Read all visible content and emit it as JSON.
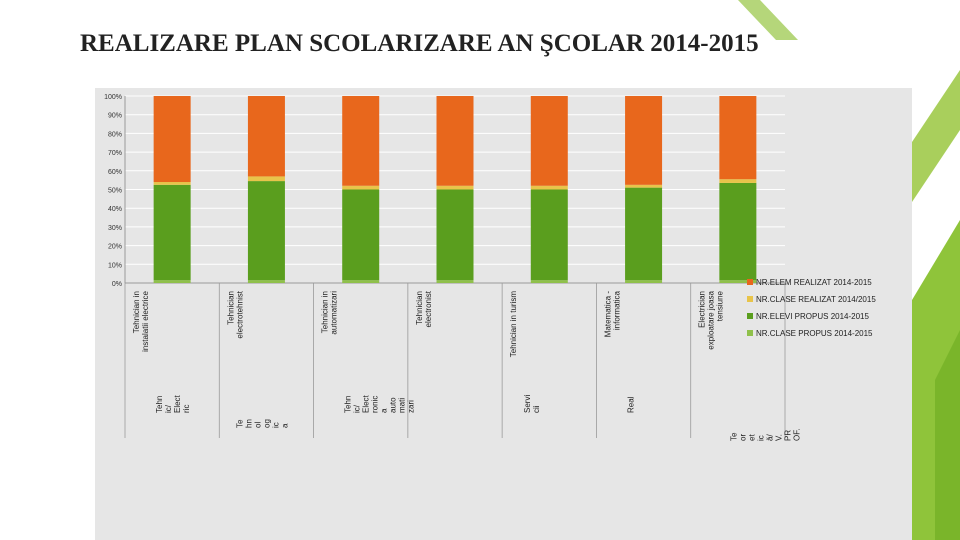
{
  "slide": {
    "title": "REALIZARE PLAN SCOLARIZARE AN ŞCOLAR 2014-2015"
  },
  "colors": {
    "nr_elem_realizat": "#e8671c",
    "nr_clase_realizat": "#e8c44a",
    "nr_elevi_propus": "#5a9e1e",
    "nr_clase_propus": "#8fc04a",
    "panel_background": "#e6e6e6",
    "accent_green": "#8fc43a"
  },
  "chart_data": {
    "type": "bar",
    "stacked": "percent",
    "title": "",
    "xlabel": "",
    "ylabel": "",
    "ylim": [
      0,
      100
    ],
    "y_ticks": [
      "0%",
      "10%",
      "20%",
      "30%",
      "40%",
      "50%",
      "60%",
      "70%",
      "80%",
      "90%",
      "100%"
    ],
    "grid": true,
    "legend_position": "right",
    "categories": [
      {
        "top": [
          "Tehnician in",
          "instalatii electrice"
        ],
        "bottom": [
          "Tehn",
          "ic/",
          "Elect",
          "ric"
        ]
      },
      {
        "top": [
          "Tehnician",
          "electrotehnist"
        ],
        "bottom": [
          "Te",
          "hn",
          "ol",
          "og",
          "ic",
          "a"
        ]
      },
      {
        "top": [
          "Tehnician in",
          "automatizari"
        ],
        "bottom": [
          "Tehn",
          "ic/",
          "Elect",
          "ronic",
          "a",
          "auto",
          "mati",
          "zari"
        ]
      },
      {
        "top": [
          "Tehnician",
          "electronist"
        ],
        "bottom": []
      },
      {
        "top": [
          "Tehnician in turism"
        ],
        "bottom": [
          "Servi",
          "cii"
        ]
      },
      {
        "top": [
          "Matematica -",
          "informatica"
        ],
        "bottom": [
          "Real"
        ]
      },
      {
        "top": [
          "Electrician",
          "exploatare joasa",
          "tensiune"
        ],
        "bottom": [
          "Te",
          "or",
          "et",
          "ic",
          "ă/",
          "V.",
          "PR",
          "OF."
        ]
      }
    ],
    "series": [
      {
        "name": "NR.CLASE PROPUS 2014-2015",
        "values": [
          1.5,
          1.5,
          1.5,
          1.5,
          1.5,
          1.5,
          1.5
        ]
      },
      {
        "name": "NR.ELEVI PROPUS 2014-2015",
        "values": [
          51,
          53,
          48.5,
          48.5,
          48.5,
          49.5,
          52
        ]
      },
      {
        "name": "NR.CLASE  REALIZAT 2014/2015",
        "values": [
          1.5,
          2.5,
          2,
          2,
          2,
          1.5,
          2
        ]
      },
      {
        "name": "NR.ELEM REALIZAT 2014-2015",
        "values": [
          46,
          43,
          48,
          48,
          48,
          47.5,
          44.5
        ]
      }
    ]
  }
}
